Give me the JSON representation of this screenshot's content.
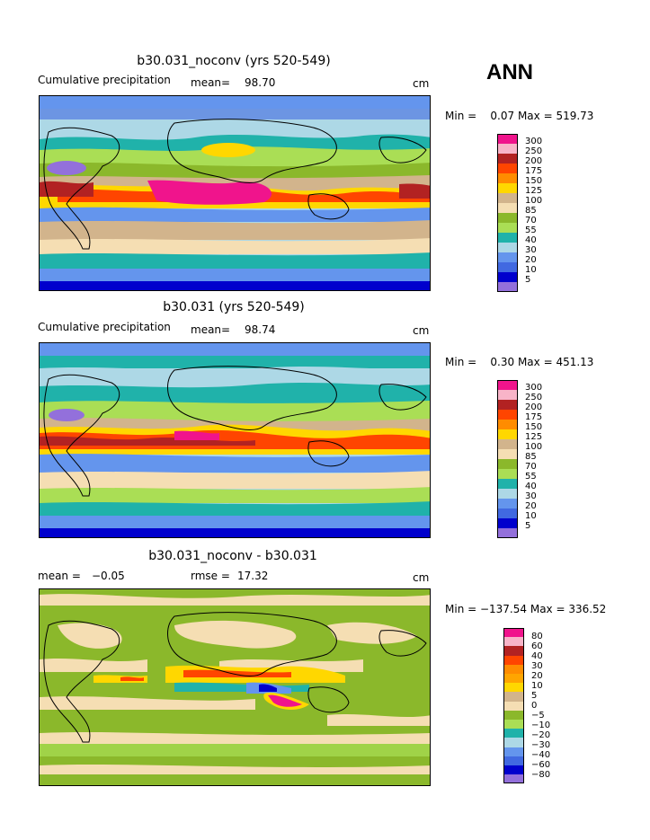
{
  "season": "ANN",
  "chart_data": [
    {
      "type": "heatmap",
      "title": "b30.031_noconv (yrs 520-549)",
      "variable": "Cumulative precipitation",
      "mean_label": "mean=",
      "mean": "98.70",
      "units": "cm",
      "minmax_label": "Min =    0.07 Max = 519.73",
      "min": 0.07,
      "max": 519.73,
      "legend_levels": [
        "300",
        "250",
        "200",
        "175",
        "150",
        "125",
        "100",
        "85",
        "70",
        "55",
        "40",
        "30",
        "20",
        "10",
        "5"
      ]
    },
    {
      "type": "heatmap",
      "title": "b30.031 (yrs 520-549)",
      "variable": "Cumulative precipitation",
      "mean_label": "mean=",
      "mean": "98.74",
      "units": "cm",
      "minmax_label": "Min =    0.30 Max = 451.13",
      "min": 0.3,
      "max": 451.13,
      "legend_levels": [
        "300",
        "250",
        "200",
        "175",
        "150",
        "125",
        "100",
        "85",
        "70",
        "55",
        "40",
        "30",
        "20",
        "10",
        "5"
      ]
    },
    {
      "type": "heatmap",
      "title": "b30.031_noconv - b30.031",
      "mean_label": "mean =",
      "mean": "−0.05",
      "rmse_label": "rmse =",
      "rmse": "17.32",
      "units": "cm",
      "minmax_label": "Min = −137.54 Max = 336.52",
      "min": -137.54,
      "max": 336.52,
      "legend_levels": [
        "80",
        "60",
        "40",
        "30",
        "20",
        "10",
        "5",
        "0",
        "−5",
        "−10",
        "−20",
        "−30",
        "−40",
        "−60",
        "−80"
      ]
    }
  ],
  "colors": {
    "precip": [
      "#f0148c",
      "#f8b4c8",
      "#b22222",
      "#ff4500",
      "#ff8c00",
      "#ffd700",
      "#d2b48c",
      "#f5deb3",
      "#8bb82b",
      "#aade55",
      "#20b2aa",
      "#add8e6",
      "#6495ed",
      "#4169e1",
      "#0000cd",
      "#9370db"
    ],
    "diff": [
      "#f0148c",
      "#f8b4c8",
      "#b22222",
      "#ff4500",
      "#ff8c00",
      "#ffa500",
      "#ffd700",
      "#d2b48c",
      "#f5deb3",
      "#8bb82b",
      "#aade55",
      "#20b2aa",
      "#add8e6",
      "#6495ed",
      "#4169e1",
      "#0000cd",
      "#9370db"
    ]
  }
}
